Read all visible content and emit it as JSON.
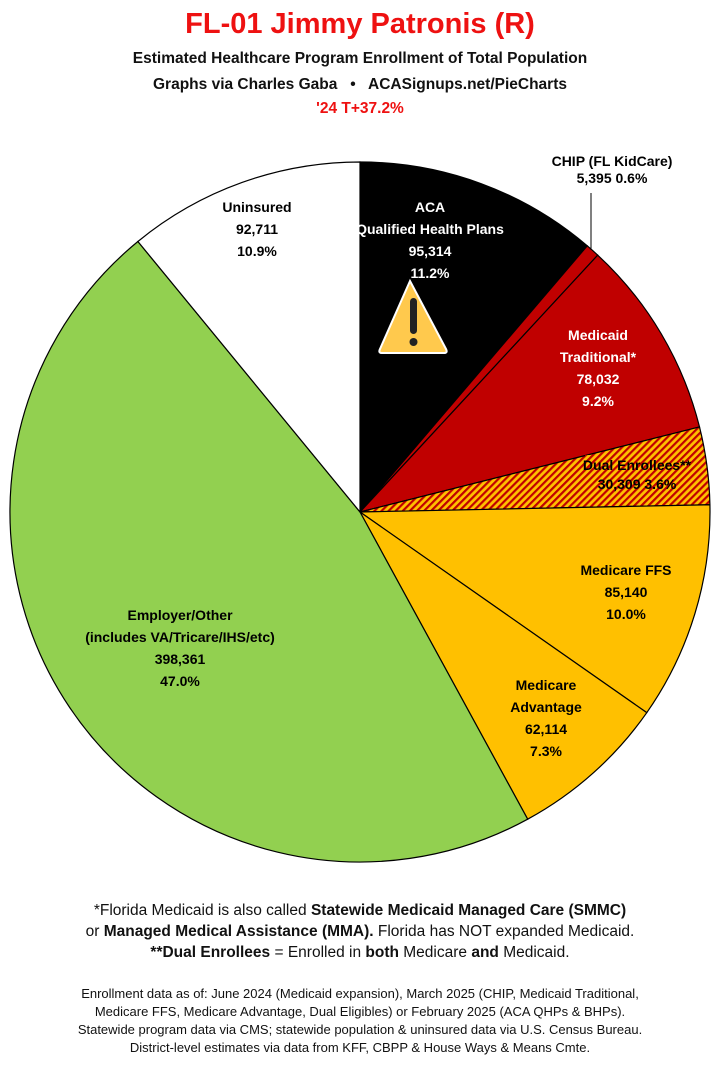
{
  "header": {
    "title": "FL-01 Jimmy Patronis (R)",
    "subtitle": "Estimated Healthcare Program Enrollment of Total Population",
    "credit": "Graphs via Charles Gaba   •   ACASignups.net/PieCharts",
    "trump_margin": "'24 T+37.2%"
  },
  "chart_data": {
    "type": "pie",
    "start": "top, clockwise",
    "slices": [
      {
        "name": "ACA Qualified Health Plans",
        "lines": [
          "ACA",
          "Qualified Health Plans",
          "95,314",
          "11.2%"
        ],
        "value": 95314,
        "percent": 11.2,
        "color": "#000000",
        "text_color": "#ffffff",
        "icon": "warning-icon"
      },
      {
        "name": "CHIP (FL KidCare)",
        "lines": [
          "CHIP (FL KidCare)",
          "5,395 0.6%"
        ],
        "value": 5395,
        "percent": 0.6,
        "color": "#c00000",
        "text_color": "#000000"
      },
      {
        "name": "Medicaid Traditional*",
        "lines": [
          "Medicaid",
          "Traditional*",
          "78,032",
          "9.2%"
        ],
        "value": 78032,
        "percent": 9.2,
        "color": "#c00000",
        "text_color": "#ffffff"
      },
      {
        "name": "Dual Enrollees**",
        "lines": [
          "Dual Enrollees**",
          "30,309 3.6%"
        ],
        "value": 30309,
        "percent": 3.6,
        "color": "#ffc000",
        "hatch": "#c00000",
        "text_color": "#000000"
      },
      {
        "name": "Medicare FFS",
        "lines": [
          "Medicare FFS",
          "85,140",
          "10.0%"
        ],
        "value": 85140,
        "percent": 10.0,
        "color": "#ffc000",
        "text_color": "#000000"
      },
      {
        "name": "Medicare Advantage",
        "lines": [
          "Medicare",
          "Advantage",
          "62,114",
          "7.3%"
        ],
        "value": 62114,
        "percent": 7.3,
        "color": "#ffc000",
        "text_color": "#000000"
      },
      {
        "name": "Employer/Other",
        "lines": [
          "Employer/Other",
          "(includes VA/Tricare/IHS/etc)",
          "398,361",
          "47.0%"
        ],
        "value": 398361,
        "percent": 47.0,
        "color": "#92d050",
        "text_color": "#000000"
      },
      {
        "name": "Uninsured",
        "lines": [
          "Uninsured",
          "92,711",
          "10.9%"
        ],
        "value": 92711,
        "percent": 10.9,
        "color": "#ffffff",
        "text_color": "#000000"
      }
    ]
  },
  "notes": [
    [
      {
        "t": "*Florida Medicaid is also called "
      },
      {
        "t": "Statewide Medicaid Managed Care (SMMC)",
        "b": true
      }
    ],
    [
      {
        "t": "or "
      },
      {
        "t": "Managed Medical Assistance (MMA).",
        "b": true
      },
      {
        "t": " Florida has NOT expanded Medicaid."
      }
    ],
    [
      {
        "t": "**Dual Enrollees",
        "b": true
      },
      {
        "t": " = Enrolled in "
      },
      {
        "t": "both",
        "b": true
      },
      {
        "t": " Medicare "
      },
      {
        "t": "and",
        "b": true
      },
      {
        "t": " Medicaid."
      }
    ]
  ],
  "sources": [
    "Enrollment data as of: June 2024 (Medicaid expansion), March 2025 (CHIP, Medicaid Traditional,",
    "Medicare FFS, Medicare Advantage, Dual Eligibles) or February 2025 (ACA QHPs & BHPs).",
    "Statewide program data via CMS; statewide population & uninsured data via U.S. Census Bureau.",
    "District-level estimates via data from KFF, CBPP & House Ways & Means Cmte."
  ]
}
